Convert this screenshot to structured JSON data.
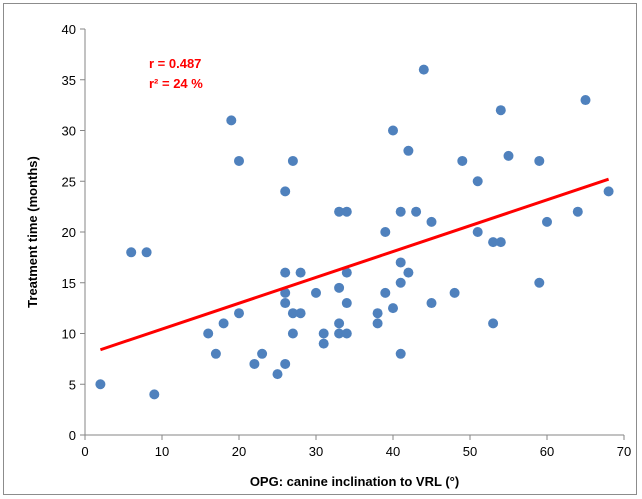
{
  "chart_data": {
    "type": "scatter",
    "title": "",
    "xlabel": "OPG: canine inclination to VRL (°)",
    "ylabel": "Treatment time (months)",
    "xlim": [
      0,
      70
    ],
    "ylim": [
      0,
      40
    ],
    "x_ticks": [
      "0",
      "10",
      "20",
      "30",
      "40",
      "50",
      "60",
      "70"
    ],
    "y_ticks": [
      "0",
      "5",
      "10",
      "15",
      "20",
      "25",
      "30",
      "35",
      "40"
    ],
    "grid": false,
    "legend": "none",
    "annotations": [
      "r = 0.487",
      "r² = 24 %"
    ],
    "point_color": "#4f81bd",
    "line_color": "#ff0000",
    "annotation_color": "#ff0000",
    "points": [
      {
        "x": 2,
        "y": 5
      },
      {
        "x": 6,
        "y": 18
      },
      {
        "x": 8,
        "y": 18
      },
      {
        "x": 9,
        "y": 4
      },
      {
        "x": 16,
        "y": 10
      },
      {
        "x": 17,
        "y": 8
      },
      {
        "x": 18,
        "y": 11
      },
      {
        "x": 19,
        "y": 31
      },
      {
        "x": 20,
        "y": 27
      },
      {
        "x": 20,
        "y": 12
      },
      {
        "x": 22,
        "y": 7
      },
      {
        "x": 23,
        "y": 8
      },
      {
        "x": 25,
        "y": 6
      },
      {
        "x": 26,
        "y": 24
      },
      {
        "x": 26,
        "y": 16
      },
      {
        "x": 26,
        "y": 14
      },
      {
        "x": 26,
        "y": 13
      },
      {
        "x": 26,
        "y": 7
      },
      {
        "x": 27,
        "y": 27
      },
      {
        "x": 27,
        "y": 12
      },
      {
        "x": 27,
        "y": 10
      },
      {
        "x": 28,
        "y": 16
      },
      {
        "x": 28,
        "y": 12
      },
      {
        "x": 30,
        "y": 14
      },
      {
        "x": 31,
        "y": 10
      },
      {
        "x": 31,
        "y": 9
      },
      {
        "x": 33,
        "y": 22
      },
      {
        "x": 33,
        "y": 14.5
      },
      {
        "x": 33,
        "y": 11
      },
      {
        "x": 33,
        "y": 10
      },
      {
        "x": 34,
        "y": 22
      },
      {
        "x": 34,
        "y": 16
      },
      {
        "x": 34,
        "y": 13
      },
      {
        "x": 34,
        "y": 10
      },
      {
        "x": 38,
        "y": 12
      },
      {
        "x": 38,
        "y": 11
      },
      {
        "x": 39,
        "y": 20
      },
      {
        "x": 39,
        "y": 14
      },
      {
        "x": 40,
        "y": 30
      },
      {
        "x": 40,
        "y": 12.5
      },
      {
        "x": 41,
        "y": 22
      },
      {
        "x": 41,
        "y": 17
      },
      {
        "x": 41,
        "y": 15
      },
      {
        "x": 41,
        "y": 8
      },
      {
        "x": 42,
        "y": 28
      },
      {
        "x": 42,
        "y": 16
      },
      {
        "x": 43,
        "y": 22
      },
      {
        "x": 44,
        "y": 36
      },
      {
        "x": 45,
        "y": 21
      },
      {
        "x": 45,
        "y": 13
      },
      {
        "x": 48,
        "y": 14
      },
      {
        "x": 49,
        "y": 27
      },
      {
        "x": 51,
        "y": 25
      },
      {
        "x": 51,
        "y": 20
      },
      {
        "x": 53,
        "y": 19
      },
      {
        "x": 53,
        "y": 11
      },
      {
        "x": 54,
        "y": 32
      },
      {
        "x": 54,
        "y": 19
      },
      {
        "x": 55,
        "y": 27.5
      },
      {
        "x": 59,
        "y": 27
      },
      {
        "x": 59,
        "y": 15
      },
      {
        "x": 60,
        "y": 21
      },
      {
        "x": 64,
        "y": 22
      },
      {
        "x": 65,
        "y": 33
      },
      {
        "x": 68,
        "y": 24
      }
    ],
    "trendline": {
      "x": [
        2,
        68
      ],
      "y": [
        8.4,
        25.2
      ]
    }
  }
}
